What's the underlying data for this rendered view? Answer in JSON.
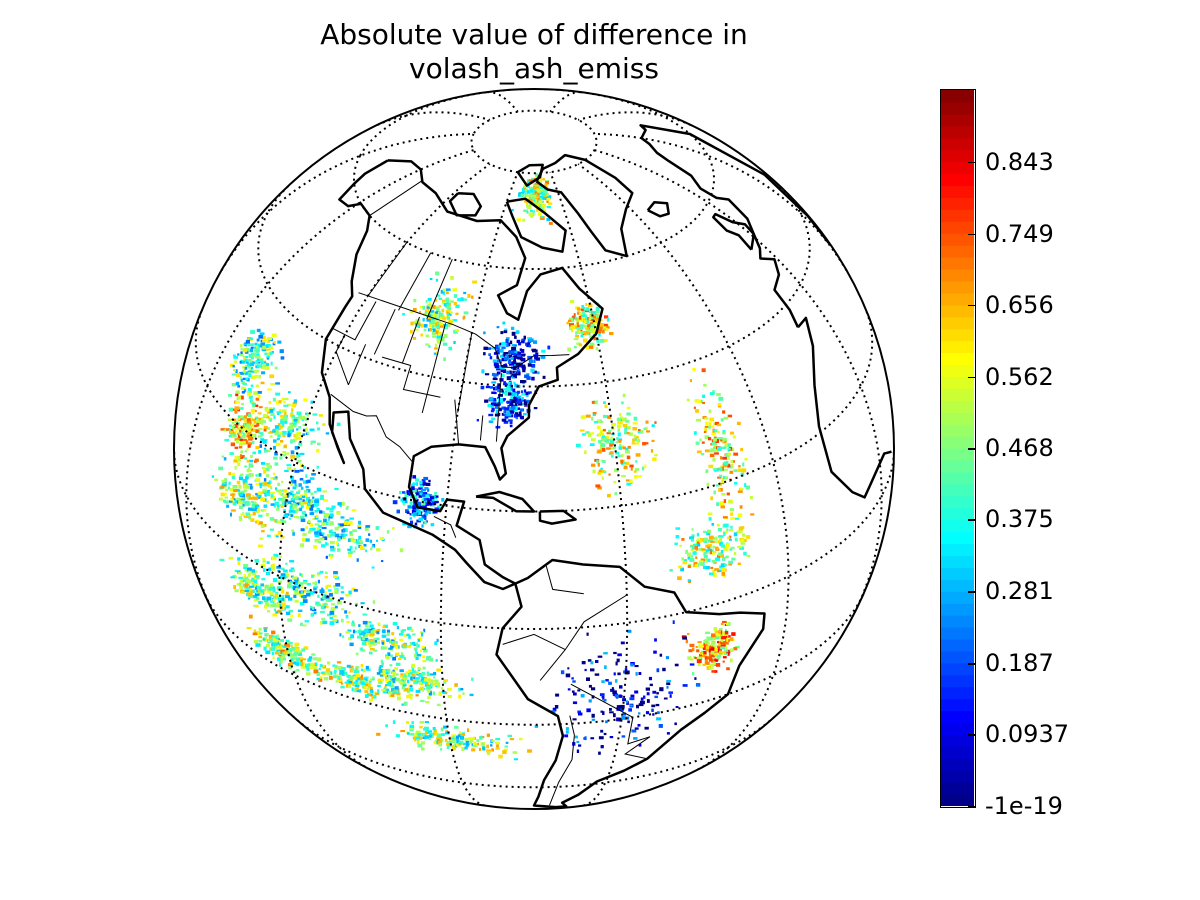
{
  "title": {
    "line1": "Absolute value of difference in",
    "line2": "volash_ash_emiss"
  },
  "colorbar": {
    "colormap": "jet",
    "ticks": [
      "0.843",
      "0.749",
      "0.656",
      "0.562",
      "0.468",
      "0.375",
      "0.281",
      "0.187",
      "0.0937",
      "-1e-19"
    ],
    "tick_values": [
      0.843,
      0.749,
      0.656,
      0.562,
      0.468,
      0.375,
      0.281,
      0.187,
      0.0937,
      -1e-19
    ],
    "min": -1e-19,
    "max": 0.937
  },
  "map": {
    "projection": "orthographic",
    "center": "Americas",
    "gridlines": "dotted",
    "coastlines": true,
    "political_boundaries": true
  }
}
